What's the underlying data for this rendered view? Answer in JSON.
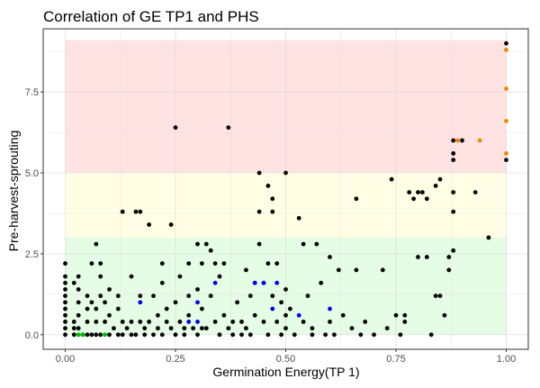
{
  "chart_data": {
    "type": "scatter",
    "title": "Correlation of GE TP1 and PHS",
    "xlabel": "Germination Energy(TP 1)",
    "ylabel": "Pre-harvest-sprouting",
    "xlim": [
      -0.05,
      1.05
    ],
    "ylim": [
      -0.45,
      9.45
    ],
    "x_ticks": [
      0,
      0.25,
      0.5,
      0.75,
      1
    ],
    "x_tick_labels": [
      "0.00",
      "0.25",
      "0.50",
      "0.75",
      "1.00"
    ],
    "y_ticks": [
      0,
      2.5,
      5,
      7.5
    ],
    "y_tick_labels": [
      "0.0",
      "2.5",
      "5.0",
      "7.5"
    ],
    "grid": true,
    "bands": [
      {
        "y0": 0,
        "y1": 3,
        "x0": 0,
        "x1": 1,
        "color": "#e5fce5"
      },
      {
        "y0": 3,
        "y1": 5,
        "x0": 0,
        "x1": 1,
        "color": "#fffee5"
      },
      {
        "y0": 5,
        "y1": 9.1,
        "x0": 0,
        "x1": 1,
        "color": "#ffe3e3"
      }
    ],
    "series": [
      {
        "color": "#000000",
        "points": [
          [
            0,
            2.2
          ],
          [
            0,
            1.8
          ],
          [
            0,
            1.6
          ],
          [
            0,
            1.4
          ],
          [
            0,
            1.2
          ],
          [
            0,
            1.0
          ],
          [
            0,
            0.8
          ],
          [
            0,
            0.6
          ],
          [
            0,
            0.4
          ],
          [
            0,
            0.2
          ],
          [
            0,
            0
          ],
          [
            0.02,
            1.6
          ],
          [
            0.02,
            0.4
          ],
          [
            0.02,
            0.2
          ],
          [
            0.02,
            0
          ],
          [
            0.03,
            1.8
          ],
          [
            0.03,
            1.4
          ],
          [
            0.03,
            1.0
          ],
          [
            0.03,
            0.6
          ],
          [
            0.03,
            0.2
          ],
          [
            0.04,
            0
          ],
          [
            0.05,
            1.2
          ],
          [
            0.05,
            0.8
          ],
          [
            0.05,
            0.4
          ],
          [
            0.05,
            0
          ],
          [
            0.06,
            2.2
          ],
          [
            0.06,
            1.0
          ],
          [
            0.06,
            0
          ],
          [
            0.07,
            2.8
          ],
          [
            0.07,
            0.8
          ],
          [
            0.07,
            0.4
          ],
          [
            0.07,
            0
          ],
          [
            0.08,
            2.2
          ],
          [
            0.08,
            1.8
          ],
          [
            0.08,
            1.2
          ],
          [
            0.08,
            0
          ],
          [
            0.09,
            1.0
          ],
          [
            0.09,
            0.4
          ],
          [
            0.1,
            1.4
          ],
          [
            0.1,
            0.6
          ],
          [
            0.1,
            0
          ],
          [
            0.11,
            0.2
          ],
          [
            0.12,
            1.2
          ],
          [
            0.12,
            0.8
          ],
          [
            0.12,
            0
          ],
          [
            0.13,
            3.8
          ],
          [
            0.13,
            0.4
          ],
          [
            0.13,
            0
          ],
          [
            0.14,
            0.2
          ],
          [
            0.15,
            1.8
          ],
          [
            0.15,
            0.4
          ],
          [
            0.15,
            0
          ],
          [
            0.16,
            3.8
          ],
          [
            0.16,
            0
          ],
          [
            0.17,
            3.8
          ],
          [
            0.17,
            1.2
          ],
          [
            0.17,
            0.4
          ],
          [
            0.18,
            0.2
          ],
          [
            0.18,
            0
          ],
          [
            0.19,
            3.4
          ],
          [
            0.19,
            0.4
          ],
          [
            0.2,
            1.2
          ],
          [
            0.2,
            0
          ],
          [
            0.21,
            0.6
          ],
          [
            0.21,
            0.2
          ],
          [
            0.22,
            2.2
          ],
          [
            0.22,
            1.6
          ],
          [
            0.22,
            0
          ],
          [
            0.23,
            0.8
          ],
          [
            0.23,
            0.4
          ],
          [
            0.24,
            3.4
          ],
          [
            0.24,
            0.2
          ],
          [
            0.25,
            6.4
          ],
          [
            0.25,
            1.0
          ],
          [
            0.25,
            0
          ],
          [
            0.26,
            1.8
          ],
          [
            0.26,
            0.4
          ],
          [
            0.27,
            0.2
          ],
          [
            0.27,
            0
          ],
          [
            0.28,
            2.2
          ],
          [
            0.28,
            1.2
          ],
          [
            0.28,
            0.6
          ],
          [
            0.29,
            0.2
          ],
          [
            0.3,
            2.8
          ],
          [
            0.3,
            1.4
          ],
          [
            0.3,
            0
          ],
          [
            0.31,
            2.2
          ],
          [
            0.31,
            0.8
          ],
          [
            0.31,
            0.2
          ],
          [
            0.32,
            2.8
          ],
          [
            0.32,
            0.2
          ],
          [
            0.33,
            2.6
          ],
          [
            0.33,
            1.2
          ],
          [
            0.34,
            2.2
          ],
          [
            0.34,
            0.4
          ],
          [
            0.35,
            1.8
          ],
          [
            0.35,
            0
          ],
          [
            0.36,
            2.2
          ],
          [
            0.36,
            0.6
          ],
          [
            0.37,
            6.4
          ],
          [
            0.37,
            0.2
          ],
          [
            0.38,
            0.4
          ],
          [
            0.38,
            0
          ],
          [
            0.39,
            1.0
          ],
          [
            0.4,
            0.4
          ],
          [
            0.4,
            0
          ],
          [
            0.41,
            2.0
          ],
          [
            0.41,
            0.2
          ],
          [
            0.42,
            1.2
          ],
          [
            0.42,
            0
          ],
          [
            0.43,
            1.6
          ],
          [
            0.43,
            0.6
          ],
          [
            0.44,
            5.0
          ],
          [
            0.44,
            3.8
          ],
          [
            0.44,
            2.8
          ],
          [
            0.45,
            1.6
          ],
          [
            0.45,
            0.4
          ],
          [
            0.46,
            4.6
          ],
          [
            0.46,
            2.2
          ],
          [
            0.46,
            0
          ],
          [
            0.47,
            4.2
          ],
          [
            0.47,
            3.8
          ],
          [
            0.47,
            1.2
          ],
          [
            0.48,
            2.2
          ],
          [
            0.48,
            0.4
          ],
          [
            0.49,
            1.0
          ],
          [
            0.49,
            0
          ],
          [
            0.5,
            5.0
          ],
          [
            0.5,
            1.4
          ],
          [
            0.5,
            0.6
          ],
          [
            0.5,
            0.2
          ],
          [
            0.51,
            0.8
          ],
          [
            0.52,
            0
          ],
          [
            0.53,
            3.6
          ],
          [
            0.54,
            2.8
          ],
          [
            0.54,
            0.4
          ],
          [
            0.55,
            1.2
          ],
          [
            0.56,
            0.2
          ],
          [
            0.56,
            0
          ],
          [
            0.57,
            2.8
          ],
          [
            0.58,
            1.6
          ],
          [
            0.59,
            0
          ],
          [
            0.6,
            2.4
          ],
          [
            0.6,
            0.4
          ],
          [
            0.61,
            0
          ],
          [
            0.62,
            2.0
          ],
          [
            0.63,
            0.6
          ],
          [
            0.65,
            0.2
          ],
          [
            0.66,
            4.2
          ],
          [
            0.66,
            2.0
          ],
          [
            0.67,
            0
          ],
          [
            0.68,
            0.4
          ],
          [
            0.7,
            0
          ],
          [
            0.72,
            2.0
          ],
          [
            0.73,
            0.2
          ],
          [
            0.74,
            4.8
          ],
          [
            0.75,
            0.6
          ],
          [
            0.76,
            0
          ],
          [
            0.77,
            0.6
          ],
          [
            0.77,
            0.4
          ],
          [
            0.78,
            4.4
          ],
          [
            0.79,
            4.2
          ],
          [
            0.8,
            4.4
          ],
          [
            0.8,
            2.4
          ],
          [
            0.81,
            4.4
          ],
          [
            0.82,
            4.2
          ],
          [
            0.82,
            2.4
          ],
          [
            0.83,
            0
          ],
          [
            0.84,
            4.6
          ],
          [
            0.84,
            1.2
          ],
          [
            0.85,
            4.8
          ],
          [
            0.85,
            1.2
          ],
          [
            0.86,
            0.6
          ],
          [
            0.87,
            2.4
          ],
          [
            0.87,
            2.0
          ],
          [
            0.88,
            6.0
          ],
          [
            0.88,
            5.4
          ],
          [
            0.88,
            5.6
          ],
          [
            0.88,
            4.4
          ],
          [
            0.88,
            3.8
          ],
          [
            0.88,
            2.6
          ],
          [
            0.9,
            6.0
          ],
          [
            0.93,
            4.4
          ],
          [
            0.96,
            3.0
          ],
          [
            1,
            9.0
          ],
          [
            1,
            5.4
          ]
        ]
      },
      {
        "color": "#ee8800",
        "points": [
          [
            1,
            8.8
          ],
          [
            1,
            7.6
          ],
          [
            1,
            6.6
          ],
          [
            1,
            5.6
          ],
          [
            0.94,
            6.0
          ],
          [
            0.89,
            6.0
          ]
        ]
      },
      {
        "color": "#0000ee",
        "points": [
          [
            0.17,
            1.0
          ],
          [
            0.28,
            0.4
          ],
          [
            0.3,
            1.0
          ],
          [
            0.3,
            0.4
          ],
          [
            0.34,
            1.6
          ],
          [
            0.43,
            1.6
          ],
          [
            0.45,
            1.6
          ],
          [
            0.48,
            1.6
          ],
          [
            0.47,
            0.8
          ],
          [
            0.53,
            0.6
          ],
          [
            0.6,
            0.8
          ]
        ]
      },
      {
        "color": "#00bb00",
        "points": [
          [
            0.03,
            0
          ],
          [
            0.04,
            0
          ],
          [
            0.09,
            0
          ]
        ]
      }
    ]
  }
}
